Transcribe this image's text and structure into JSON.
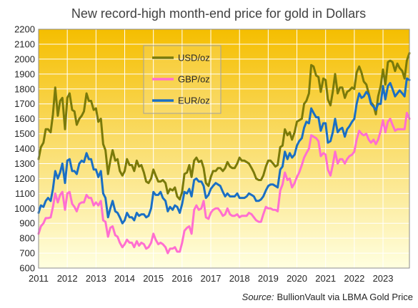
{
  "chart_data": {
    "type": "line",
    "title": "New record-high month-end price for gold in Dollars",
    "source_label": "Source:",
    "source_text": "BullionVault via LBMA Gold Price",
    "ylim": [
      600,
      2200
    ],
    "yticks": [
      "2200",
      "2100",
      "2000",
      "1900",
      "1800",
      "1700",
      "1600",
      "1500",
      "1400",
      "1300",
      "1200",
      "1100",
      "1000",
      "900",
      "800",
      "700",
      "600"
    ],
    "xlim": [
      2011,
      2023.92
    ],
    "xticks": [
      "2011",
      "2012",
      "2013",
      "2014",
      "2015",
      "2016",
      "2017",
      "2018",
      "2019",
      "2020",
      "2021",
      "2022",
      "2023"
    ],
    "grid": "horizontal and vertical",
    "legend_position": "top-left",
    "colors": {
      "background_top": "#F5BE00",
      "background_bottom": "#FFFFE0",
      "grid": "#FFFFFF",
      "frame": "#8C8C8C"
    },
    "series": [
      {
        "name": "USD/oz",
        "color": "#7A7A0A",
        "x": [
          2011.0,
          2011.08,
          2011.17,
          2011.25,
          2011.33,
          2011.42,
          2011.5,
          2011.58,
          2011.67,
          2011.75,
          2011.83,
          2011.92,
          2012.0,
          2012.08,
          2012.17,
          2012.25,
          2012.33,
          2012.42,
          2012.5,
          2012.58,
          2012.67,
          2012.75,
          2012.83,
          2012.92,
          2013.0,
          2013.08,
          2013.17,
          2013.25,
          2013.33,
          2013.42,
          2013.5,
          2013.58,
          2013.67,
          2013.75,
          2013.83,
          2013.92,
          2014.0,
          2014.08,
          2014.17,
          2014.25,
          2014.33,
          2014.42,
          2014.5,
          2014.58,
          2014.67,
          2014.75,
          2014.83,
          2014.92,
          2015.0,
          2015.08,
          2015.17,
          2015.25,
          2015.33,
          2015.42,
          2015.5,
          2015.58,
          2015.67,
          2015.75,
          2015.83,
          2015.92,
          2016.0,
          2016.08,
          2016.17,
          2016.25,
          2016.33,
          2016.42,
          2016.5,
          2016.58,
          2016.67,
          2016.75,
          2016.83,
          2016.92,
          2017.0,
          2017.08,
          2017.17,
          2017.25,
          2017.33,
          2017.42,
          2017.5,
          2017.58,
          2017.67,
          2017.75,
          2017.83,
          2017.92,
          2018.0,
          2018.08,
          2018.17,
          2018.25,
          2018.33,
          2018.42,
          2018.5,
          2018.58,
          2018.67,
          2018.75,
          2018.83,
          2018.92,
          2019.0,
          2019.08,
          2019.17,
          2019.25,
          2019.33,
          2019.42,
          2019.5,
          2019.58,
          2019.67,
          2019.75,
          2019.83,
          2019.92,
          2020.0,
          2020.08,
          2020.17,
          2020.25,
          2020.33,
          2020.42,
          2020.5,
          2020.58,
          2020.67,
          2020.75,
          2020.83,
          2020.92,
          2021.0,
          2021.08,
          2021.17,
          2021.25,
          2021.33,
          2021.42,
          2021.5,
          2021.58,
          2021.67,
          2021.75,
          2021.83,
          2021.92,
          2022.0,
          2022.08,
          2022.17,
          2022.25,
          2022.33,
          2022.42,
          2022.5,
          2022.58,
          2022.67,
          2022.75,
          2022.83,
          2022.92,
          2023.0,
          2023.08,
          2023.17,
          2023.25,
          2023.33,
          2023.42,
          2023.5,
          2023.58,
          2023.67,
          2023.75,
          2023.83,
          2023.92
        ],
        "values": [
          1330,
          1410,
          1440,
          1530,
          1530,
          1510,
          1630,
          1810,
          1620,
          1720,
          1740,
          1530,
          1740,
          1770,
          1660,
          1650,
          1560,
          1600,
          1620,
          1650,
          1770,
          1720,
          1720,
          1660,
          1670,
          1580,
          1600,
          1430,
          1390,
          1230,
          1320,
          1390,
          1320,
          1330,
          1250,
          1220,
          1250,
          1330,
          1290,
          1290,
          1250,
          1320,
          1280,
          1290,
          1240,
          1180,
          1170,
          1200,
          1260,
          1220,
          1180,
          1180,
          1190,
          1170,
          1100,
          1130,
          1120,
          1140,
          1080,
          1060,
          1110,
          1230,
          1240,
          1290,
          1210,
          1320,
          1340,
          1310,
          1320,
          1270,
          1170,
          1150,
          1210,
          1250,
          1250,
          1270,
          1270,
          1250,
          1270,
          1310,
          1280,
          1270,
          1270,
          1300,
          1340,
          1320,
          1320,
          1310,
          1300,
          1270,
          1240,
          1200,
          1190,
          1190,
          1220,
          1280,
          1320,
          1320,
          1300,
          1280,
          1290,
          1410,
          1420,
          1530,
          1490,
          1510,
          1460,
          1510,
          1580,
          1590,
          1600,
          1700,
          1720,
          1770,
          1960,
          1950,
          1890,
          1880,
          1780,
          1870,
          1860,
          1730,
          1690,
          1780,
          1900,
          1770,
          1810,
          1810,
          1740,
          1780,
          1790,
          1810,
          1800,
          1910,
          1950,
          1910,
          1850,
          1830,
          1770,
          1710,
          1690,
          1630,
          1750,
          1820,
          1930,
          1830,
          1980,
          1990,
          1980,
          1920,
          1970,
          1940,
          1920,
          1870,
          1990,
          2040
        ]
      },
      {
        "name": "GBP/oz",
        "color": "#FF6FD0",
        "x": [
          2011.0,
          2011.08,
          2011.17,
          2011.25,
          2011.33,
          2011.42,
          2011.5,
          2011.58,
          2011.67,
          2011.75,
          2011.83,
          2011.92,
          2012.0,
          2012.08,
          2012.17,
          2012.25,
          2012.33,
          2012.42,
          2012.5,
          2012.58,
          2012.67,
          2012.75,
          2012.83,
          2012.92,
          2013.0,
          2013.08,
          2013.17,
          2013.25,
          2013.33,
          2013.42,
          2013.5,
          2013.58,
          2013.67,
          2013.75,
          2013.83,
          2013.92,
          2014.0,
          2014.08,
          2014.17,
          2014.25,
          2014.33,
          2014.42,
          2014.5,
          2014.58,
          2014.67,
          2014.75,
          2014.83,
          2014.92,
          2015.0,
          2015.08,
          2015.17,
          2015.25,
          2015.33,
          2015.42,
          2015.5,
          2015.58,
          2015.67,
          2015.75,
          2015.83,
          2015.92,
          2016.0,
          2016.08,
          2016.17,
          2016.25,
          2016.33,
          2016.42,
          2016.5,
          2016.58,
          2016.67,
          2016.75,
          2016.83,
          2016.92,
          2017.0,
          2017.08,
          2017.17,
          2017.25,
          2017.33,
          2017.42,
          2017.5,
          2017.58,
          2017.67,
          2017.75,
          2017.83,
          2017.92,
          2018.0,
          2018.08,
          2018.17,
          2018.25,
          2018.33,
          2018.42,
          2018.5,
          2018.58,
          2018.67,
          2018.75,
          2018.83,
          2018.92,
          2019.0,
          2019.08,
          2019.17,
          2019.25,
          2019.33,
          2019.42,
          2019.5,
          2019.58,
          2019.67,
          2019.75,
          2019.83,
          2019.92,
          2020.0,
          2020.08,
          2020.17,
          2020.25,
          2020.33,
          2020.42,
          2020.5,
          2020.58,
          2020.67,
          2020.75,
          2020.83,
          2020.92,
          2021.0,
          2021.08,
          2021.17,
          2021.25,
          2021.33,
          2021.42,
          2021.5,
          2021.58,
          2021.67,
          2021.75,
          2021.83,
          2021.92,
          2022.0,
          2022.08,
          2022.17,
          2022.25,
          2022.33,
          2022.42,
          2022.5,
          2022.58,
          2022.67,
          2022.75,
          2022.83,
          2022.92,
          2023.0,
          2023.08,
          2023.17,
          2023.25,
          2023.33,
          2023.42,
          2023.5,
          2023.58,
          2023.67,
          2023.75,
          2023.83,
          2023.92
        ],
        "values": [
          830,
          880,
          900,
          935,
          935,
          940,
          1010,
          1100,
          1040,
          1090,
          1110,
          990,
          1100,
          1110,
          1030,
          1010,
          980,
          1030,
          1040,
          1040,
          1090,
          1070,
          1070,
          1020,
          1040,
          1020,
          1050,
          920,
          910,
          810,
          870,
          880,
          820,
          810,
          770,
          740,
          760,
          790,
          770,
          770,
          740,
          780,
          750,
          770,
          760,
          730,
          740,
          770,
          830,
          790,
          760,
          770,
          760,
          740,
          700,
          730,
          730,
          740,
          710,
          710,
          770,
          850,
          870,
          880,
          830,
          990,
          1020,
          990,
          1000,
          1050,
          940,
          930,
          970,
          990,
          1000,
          1000,
          980,
          950,
          960,
          1000,
          960,
          950,
          950,
          960,
          940,
          950,
          950,
          950,
          970,
          960,
          940,
          920,
          910,
          910,
          960,
          1010,
          1000,
          1000,
          990,
          990,
          980,
          1120,
          1160,
          1240,
          1190,
          1200,
          1140,
          1170,
          1210,
          1240,
          1290,
          1340,
          1370,
          1400,
          1490,
          1480,
          1470,
          1450,
          1350,
          1370,
          1360,
          1260,
          1220,
          1290,
          1380,
          1300,
          1330,
          1330,
          1300,
          1330,
          1350,
          1360,
          1380,
          1460,
          1520,
          1500,
          1490,
          1500,
          1460,
          1440,
          1460,
          1430,
          1460,
          1520,
          1590,
          1510,
          1580,
          1600,
          1560,
          1520,
          1530,
          1530,
          1530,
          1530,
          1640,
          1600
        ]
      },
      {
        "name": "EUR/oz",
        "color": "#1A6FC4",
        "x": [
          2011.0,
          2011.08,
          2011.17,
          2011.25,
          2011.33,
          2011.42,
          2011.5,
          2011.58,
          2011.67,
          2011.75,
          2011.83,
          2011.92,
          2012.0,
          2012.08,
          2012.17,
          2012.25,
          2012.33,
          2012.42,
          2012.5,
          2012.58,
          2012.67,
          2012.75,
          2012.83,
          2012.92,
          2013.0,
          2013.08,
          2013.17,
          2013.25,
          2013.33,
          2013.42,
          2013.5,
          2013.58,
          2013.67,
          2013.75,
          2013.83,
          2013.92,
          2014.0,
          2014.08,
          2014.17,
          2014.25,
          2014.33,
          2014.42,
          2014.5,
          2014.58,
          2014.67,
          2014.75,
          2014.83,
          2014.92,
          2015.0,
          2015.08,
          2015.17,
          2015.25,
          2015.33,
          2015.42,
          2015.5,
          2015.58,
          2015.67,
          2015.75,
          2015.83,
          2015.92,
          2016.0,
          2016.08,
          2016.17,
          2016.25,
          2016.33,
          2016.42,
          2016.5,
          2016.58,
          2016.67,
          2016.75,
          2016.83,
          2016.92,
          2017.0,
          2017.08,
          2017.17,
          2017.25,
          2017.33,
          2017.42,
          2017.5,
          2017.58,
          2017.67,
          2017.75,
          2017.83,
          2017.92,
          2018.0,
          2018.08,
          2018.17,
          2018.25,
          2018.33,
          2018.42,
          2018.5,
          2018.58,
          2018.67,
          2018.75,
          2018.83,
          2018.92,
          2019.0,
          2019.08,
          2019.17,
          2019.25,
          2019.33,
          2019.42,
          2019.5,
          2019.58,
          2019.67,
          2019.75,
          2019.83,
          2019.92,
          2020.0,
          2020.08,
          2020.17,
          2020.25,
          2020.33,
          2020.42,
          2020.5,
          2020.58,
          2020.67,
          2020.75,
          2020.83,
          2020.92,
          2021.0,
          2021.08,
          2021.17,
          2021.25,
          2021.33,
          2021.42,
          2021.5,
          2021.58,
          2021.67,
          2021.75,
          2021.83,
          2021.92,
          2022.0,
          2022.08,
          2022.17,
          2022.25,
          2022.33,
          2022.42,
          2022.5,
          2022.58,
          2022.67,
          2022.75,
          2022.83,
          2022.92,
          2023.0,
          2023.08,
          2023.17,
          2023.25,
          2023.33,
          2023.42,
          2023.5,
          2023.58,
          2023.67,
          2023.75,
          2023.83,
          2023.92
        ],
        "values": [
          970,
          1020,
          1010,
          1050,
          1070,
          1050,
          1130,
          1250,
          1200,
          1240,
          1300,
          1170,
          1320,
          1330,
          1250,
          1250,
          1230,
          1300,
          1320,
          1310,
          1370,
          1330,
          1330,
          1260,
          1260,
          1210,
          1250,
          1100,
          1070,
          940,
          1000,
          1050,
          980,
          970,
          940,
          900,
          920,
          970,
          940,
          940,
          920,
          970,
          950,
          960,
          960,
          940,
          950,
          1000,
          1110,
          1090,
          1090,
          1110,
          1070,
          1050,
          980,
          1010,
          990,
          1020,
          1010,
          970,
          1030,
          1110,
          1100,
          1130,
          1080,
          1190,
          1200,
          1180,
          1180,
          1150,
          1070,
          1090,
          1130,
          1150,
          1170,
          1160,
          1150,
          1110,
          1080,
          1100,
          1080,
          1080,
          1080,
          1100,
          1070,
          1070,
          1070,
          1080,
          1100,
          1090,
          1080,
          1050,
          1050,
          1060,
          1080,
          1120,
          1150,
          1160,
          1160,
          1150,
          1140,
          1260,
          1280,
          1380,
          1330,
          1370,
          1340,
          1360,
          1420,
          1450,
          1470,
          1540,
          1580,
          1570,
          1670,
          1640,
          1610,
          1610,
          1520,
          1570,
          1570,
          1440,
          1450,
          1510,
          1600,
          1510,
          1530,
          1540,
          1480,
          1530,
          1550,
          1580,
          1600,
          1700,
          1770,
          1740,
          1750,
          1780,
          1760,
          1700,
          1680,
          1660,
          1700,
          1700,
          1820,
          1730,
          1820,
          1840,
          1800,
          1750,
          1770,
          1790,
          1770,
          1750,
          1870,
          1860
        ]
      }
    ]
  }
}
